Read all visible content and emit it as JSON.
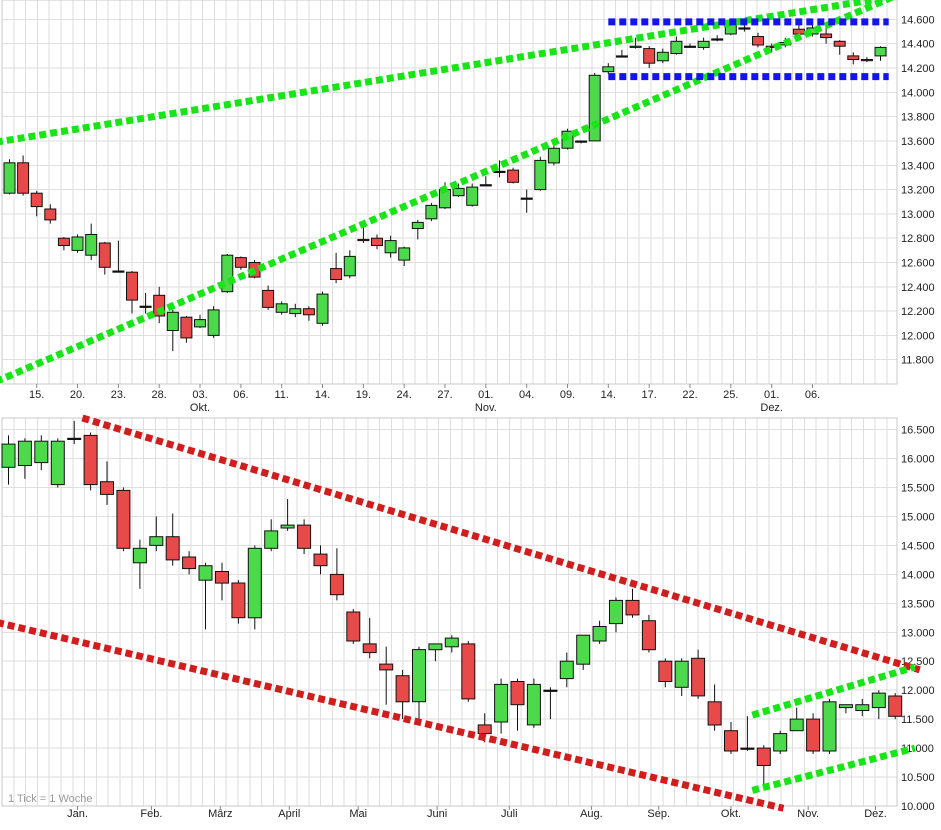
{
  "colors": {
    "up": "#4cd94c",
    "down": "#e84a4a",
    "green_line": "#18e418",
    "blue_line": "#1414ee",
    "red_line": "#d01e1e",
    "grid": "#dedede"
  },
  "chart_data": [
    {
      "type": "candlestick",
      "title": "",
      "period": "daily",
      "ylim": [
        11600,
        14760
      ],
      "y_ticks": [
        11800,
        12000,
        12200,
        12400,
        12600,
        12800,
        13000,
        13200,
        13400,
        13600,
        13800,
        14000,
        14200,
        14400,
        14600
      ],
      "y_tick_labels": [
        "11.800",
        "12.000",
        "12.200",
        "12.400",
        "12.600",
        "12.800",
        "13.000",
        "13.200",
        "13.400",
        "13.600",
        "13.800",
        "14.000",
        "14.200",
        "14.400",
        "14.600"
      ],
      "x_labels": [
        {
          "i": 2,
          "text": "15."
        },
        {
          "i": 5,
          "text": "20."
        },
        {
          "i": 8,
          "text": "23."
        },
        {
          "i": 11,
          "text": "28."
        },
        {
          "i": 14,
          "text": "03.",
          "sub": "Okt."
        },
        {
          "i": 17,
          "text": "06."
        },
        {
          "i": 20,
          "text": "11."
        },
        {
          "i": 23,
          "text": "14."
        },
        {
          "i": 26,
          "text": "19."
        },
        {
          "i": 29,
          "text": "24."
        },
        {
          "i": 32,
          "text": "27."
        },
        {
          "i": 35,
          "text": "01.",
          "sub": "Nov."
        },
        {
          "i": 38,
          "text": "04."
        },
        {
          "i": 41,
          "text": "09."
        },
        {
          "i": 44,
          "text": "14."
        },
        {
          "i": 47,
          "text": "17."
        },
        {
          "i": 50,
          "text": "22."
        },
        {
          "i": 53,
          "text": "25."
        },
        {
          "i": 56,
          "text": "01.",
          "sub": "Dez."
        },
        {
          "i": 59,
          "text": "06."
        }
      ],
      "candles": [
        [
          13170,
          13420,
          13450,
          13160
        ],
        [
          13420,
          13170,
          13480,
          13150
        ],
        [
          13170,
          13060,
          13190,
          12980
        ],
        [
          13040,
          12950,
          13080,
          12920
        ],
        [
          12800,
          12740,
          12810,
          12700
        ],
        [
          12700,
          12810,
          12830,
          12680
        ],
        [
          12660,
          12830,
          12920,
          12620
        ],
        [
          12760,
          12560,
          12770,
          12500
        ],
        [
          12530,
          12530,
          12780,
          12530
        ],
        [
          12520,
          12290,
          12530,
          12180
        ],
        [
          12240,
          12240,
          12350,
          12180
        ],
        [
          12330,
          12160,
          12400,
          12100
        ],
        [
          12040,
          12190,
          12210,
          11870
        ],
        [
          12150,
          11980,
          12160,
          11940
        ],
        [
          12070,
          12130,
          12170,
          12060
        ],
        [
          12000,
          12210,
          12240,
          11980
        ],
        [
          12360,
          12660,
          12670,
          12350
        ],
        [
          12640,
          12560,
          12650,
          12540
        ],
        [
          12600,
          12480,
          12620,
          12470
        ],
        [
          12370,
          12230,
          12410,
          12210
        ],
        [
          12190,
          12260,
          12280,
          12170
        ],
        [
          12180,
          12220,
          12260,
          12150
        ],
        [
          12220,
          12170,
          12240,
          12120
        ],
        [
          12100,
          12340,
          12360,
          12080
        ],
        [
          12550,
          12460,
          12680,
          12430
        ],
        [
          12490,
          12650,
          12700,
          12470
        ],
        [
          12790,
          12780,
          12920,
          12760
        ],
        [
          12800,
          12740,
          12830,
          12710
        ],
        [
          12680,
          12780,
          12820,
          12640
        ],
        [
          12620,
          12720,
          12730,
          12570
        ],
        [
          12880,
          12930,
          12950,
          12790
        ],
        [
          12960,
          13070,
          13090,
          12940
        ],
        [
          13050,
          13200,
          13260,
          13040
        ],
        [
          13150,
          13210,
          13250,
          13140
        ],
        [
          13070,
          13220,
          13250,
          13060
        ],
        [
          13240,
          13240,
          13310,
          13240
        ],
        [
          13350,
          13350,
          13440,
          13300
        ],
        [
          13360,
          13260,
          13380,
          13250
        ],
        [
          13130,
          13130,
          13200,
          13010
        ],
        [
          13200,
          13440,
          13470,
          13190
        ],
        [
          13420,
          13540,
          13590,
          13400
        ],
        [
          13540,
          13680,
          13700,
          13530
        ],
        [
          13600,
          13600,
          13600,
          13580
        ],
        [
          13600,
          14140,
          14160,
          13600
        ],
        [
          14170,
          14210,
          14240,
          14150
        ],
        [
          14300,
          14300,
          14350,
          14290
        ],
        [
          14370,
          14380,
          14450,
          14360
        ],
        [
          14360,
          14240,
          14380,
          14200
        ],
        [
          14260,
          14330,
          14360,
          14240
        ],
        [
          14320,
          14420,
          14460,
          14310
        ],
        [
          14380,
          14380,
          14400,
          14370
        ],
        [
          14370,
          14420,
          14450,
          14350
        ],
        [
          14440,
          14440,
          14470,
          14420
        ],
        [
          14480,
          14560,
          14600,
          14470
        ],
        [
          14530,
          14530,
          14560,
          14500
        ],
        [
          14460,
          14390,
          14490,
          14370
        ],
        [
          14380,
          14370,
          14400,
          14330
        ],
        [
          14390,
          14410,
          14450,
          14370
        ],
        [
          14520,
          14480,
          14560,
          14460
        ],
        [
          14480,
          14530,
          14570,
          14460
        ],
        [
          14480,
          14450,
          14530,
          14400
        ],
        [
          14420,
          14380,
          14430,
          14310
        ],
        [
          14300,
          14270,
          14330,
          14230
        ],
        [
          14270,
          14260,
          14290,
          14250
        ],
        [
          14300,
          14370,
          14380,
          14260
        ]
      ],
      "lines": [
        {
          "color": "green",
          "from": [
            -1,
            11620
          ],
          "to": [
            65,
            14790
          ]
        },
        {
          "color": "green",
          "from": [
            -1,
            13590
          ],
          "to": [
            65,
            14790
          ]
        },
        {
          "color": "blue",
          "from": [
            44,
            14580
          ],
          "to": [
            64.6,
            14580
          ]
        },
        {
          "color": "blue",
          "from": [
            44,
            14130
          ],
          "to": [
            64.6,
            14130
          ]
        }
      ]
    },
    {
      "type": "candlestick",
      "title": "",
      "period": "weekly",
      "note": "1 Tick = 1 Woche",
      "ylim": [
        10000,
        16700
      ],
      "y_ticks": [
        10000,
        10500,
        11000,
        11500,
        12000,
        12500,
        13000,
        13500,
        14000,
        14500,
        15000,
        15500,
        16000,
        16500
      ],
      "y_tick_labels": [
        "10.000",
        "10.500",
        "11.000",
        "11.500",
        "12.000",
        "12.500",
        "13.000",
        "13.500",
        "14.000",
        "14.500",
        "15.000",
        "15.500",
        "16.000",
        "16.500"
      ],
      "x_labels": [
        {
          "i": 4.2,
          "text": "Jan."
        },
        {
          "i": 8.7,
          "text": "Feb."
        },
        {
          "i": 12.9,
          "text": "März"
        },
        {
          "i": 17.1,
          "text": "April"
        },
        {
          "i": 21.3,
          "text": "Mai"
        },
        {
          "i": 26.1,
          "text": "Juni"
        },
        {
          "i": 30.5,
          "text": "Juli"
        },
        {
          "i": 35.5,
          "text": "Aug."
        },
        {
          "i": 39.6,
          "text": "Sep."
        },
        {
          "i": 44.0,
          "text": "Okt."
        },
        {
          "i": 48.7,
          "text": "Nov."
        },
        {
          "i": 52.8,
          "text": "Dez."
        }
      ],
      "candles": [
        [
          15850,
          16250,
          16400,
          15550
        ],
        [
          15880,
          16300,
          16350,
          15650
        ],
        [
          15930,
          16300,
          16400,
          15800
        ],
        [
          15550,
          16300,
          16350,
          15500
        ],
        [
          16350,
          16350,
          16650,
          16250
        ],
        [
          16400,
          15550,
          16450,
          15450
        ],
        [
          15600,
          15380,
          15950,
          15200
        ],
        [
          15450,
          14450,
          15500,
          14400
        ],
        [
          14200,
          14450,
          14600,
          13750
        ],
        [
          14500,
          14650,
          15000,
          14400
        ],
        [
          14650,
          14250,
          15050,
          14150
        ],
        [
          14300,
          14100,
          14400,
          14000
        ],
        [
          13900,
          14150,
          14200,
          13050
        ],
        [
          14050,
          13850,
          14200,
          13550
        ],
        [
          13850,
          13250,
          13900,
          13150
        ],
        [
          13250,
          14450,
          14500,
          13050
        ],
        [
          14450,
          14750,
          14950,
          14400
        ],
        [
          14800,
          14850,
          15300,
          14750
        ],
        [
          14850,
          14450,
          14950,
          14350
        ],
        [
          14350,
          14150,
          14500,
          14000
        ],
        [
          14000,
          13650,
          14450,
          13550
        ],
        [
          13350,
          12850,
          13400,
          12800
        ],
        [
          12800,
          12650,
          13250,
          12550
        ],
        [
          12450,
          12350,
          12750,
          11750
        ],
        [
          12250,
          11800,
          12350,
          11500
        ],
        [
          11800,
          12700,
          12750,
          11500
        ],
        [
          12700,
          12800,
          12800,
          12500
        ],
        [
          12750,
          12900,
          12950,
          12650
        ],
        [
          12800,
          11850,
          12850,
          11800
        ],
        [
          11400,
          11250,
          11600,
          11100
        ],
        [
          11450,
          12100,
          12200,
          11250
        ],
        [
          12150,
          11750,
          12200,
          11300
        ],
        [
          11400,
          12100,
          12200,
          11350
        ],
        [
          12000,
          12000,
          12050,
          11500
        ],
        [
          12200,
          12500,
          12650,
          12050
        ],
        [
          12450,
          12950,
          12950,
          12350
        ],
        [
          12850,
          13100,
          13200,
          12800
        ],
        [
          13150,
          13550,
          13600,
          13000
        ],
        [
          13550,
          13300,
          13750,
          13250
        ],
        [
          13200,
          12700,
          13300,
          12650
        ],
        [
          12500,
          12150,
          12550,
          12050
        ],
        [
          12050,
          12500,
          12550,
          11900
        ],
        [
          12550,
          11900,
          12700,
          11850
        ],
        [
          11800,
          11400,
          12100,
          11300
        ],
        [
          11300,
          10950,
          11450,
          10900
        ],
        [
          11000,
          11000,
          11550,
          10950
        ],
        [
          11000,
          10700,
          11050,
          10350
        ],
        [
          10950,
          11250,
          11300,
          10900
        ],
        [
          11300,
          11500,
          11700,
          11300
        ],
        [
          11500,
          10950,
          11600,
          10900
        ],
        [
          10950,
          11800,
          11850,
          10900
        ],
        [
          11700,
          11750,
          11750,
          11600
        ],
        [
          11650,
          11750,
          11850,
          11550
        ],
        [
          11700,
          11950,
          12000,
          11500
        ],
        [
          11900,
          11550,
          11950,
          11500
        ]
      ],
      "lines": [
        {
          "color": "red",
          "from": [
            4.5,
            16700
          ],
          "to": [
            55.5,
            12350
          ]
        },
        {
          "color": "red",
          "from": [
            -0.7,
            13170
          ],
          "to": [
            47.2,
            9960
          ]
        },
        {
          "color": "green",
          "from": [
            45.3,
            11570
          ],
          "to": [
            55.2,
            12400
          ]
        },
        {
          "color": "green",
          "from": [
            45.3,
            10270
          ],
          "to": [
            55.2,
            11000
          ]
        }
      ]
    }
  ]
}
